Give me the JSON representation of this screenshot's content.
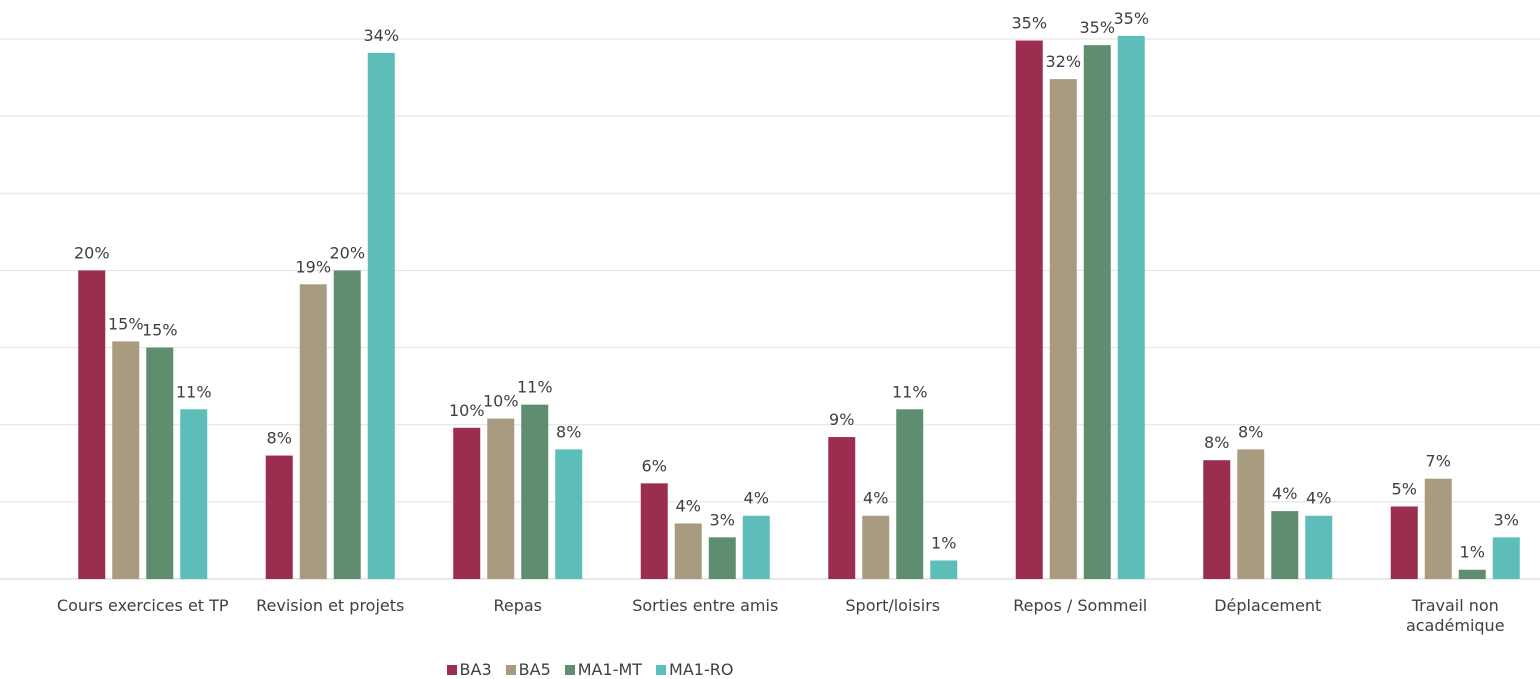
{
  "chart_data": {
    "type": "bar",
    "categories": [
      "Cours exercices et TP",
      "Revision et projets",
      "Repas",
      "Sorties entre amis",
      "Sport/loisirs",
      "Repos / Sommeil",
      "Déplacement",
      "Travail non académique"
    ],
    "series": [
      {
        "name": "BA3",
        "color": "#9b2d4f",
        "values": [
          20.0,
          8.0,
          9.8,
          6.2,
          9.2,
          34.9,
          7.7,
          4.7
        ],
        "value_labels": [
          "20%",
          "8%",
          "10%",
          "6%",
          "9%",
          "35%",
          "8%",
          "5%"
        ]
      },
      {
        "name": "BA5",
        "color": "#a99b7f",
        "values": [
          15.4,
          19.1,
          10.4,
          3.6,
          4.1,
          32.4,
          8.4,
          6.5
        ],
        "value_labels": [
          "15%",
          "19%",
          "10%",
          "4%",
          "4%",
          "32%",
          "8%",
          "7%"
        ]
      },
      {
        "name": "MA1-MT",
        "color": "#5e8d6f",
        "values": [
          15.0,
          20.0,
          11.3,
          2.7,
          11.0,
          34.6,
          4.4,
          0.6
        ],
        "value_labels": [
          "15%",
          "20%",
          "11%",
          "3%",
          "11%",
          "35%",
          "4%",
          "1%"
        ]
      },
      {
        "name": "MA1-RO",
        "color": "#5cbdb9",
        "values": [
          11.0,
          34.1,
          8.4,
          4.1,
          1.2,
          35.2,
          4.1,
          2.7
        ],
        "value_labels": [
          "11%",
          "34%",
          "8%",
          "4%",
          "1%",
          "35%",
          "4%",
          "3%"
        ]
      }
    ],
    "ylim": [
      0,
      35
    ],
    "yticks": [
      0,
      5,
      10,
      15,
      20,
      25,
      30,
      35
    ],
    "grid": true,
    "legend": "bottom"
  }
}
